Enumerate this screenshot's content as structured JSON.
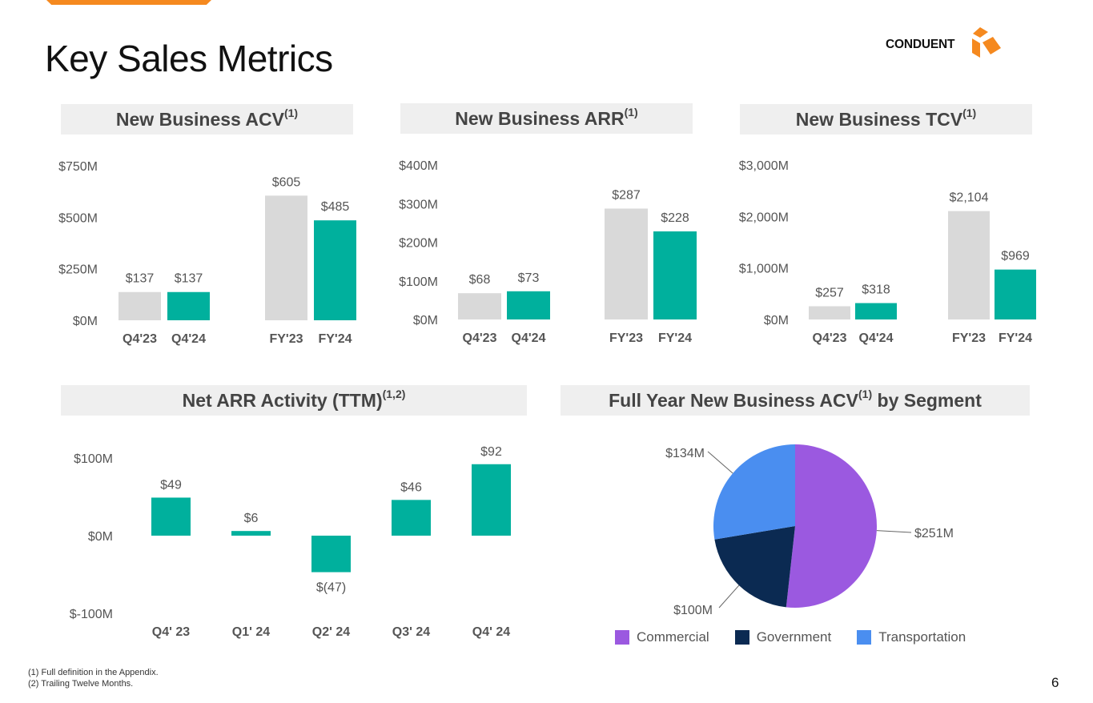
{
  "page": {
    "title": "Key Sales Metrics",
    "page_number": "6",
    "logo_text": "CONDUENT",
    "footnotes": [
      "(1) Full definition in the Appendix.",
      "(2) Trailing Twelve Months."
    ]
  },
  "colors": {
    "prior": "#d9d9d9",
    "current": "#00b09d",
    "accent": "#f5891f",
    "commercial": "#9b59e0",
    "government": "#0b2a52",
    "transportation": "#4a8ef0"
  },
  "headers": {
    "acv": {
      "text": "New Business ACV",
      "sup": "(1)"
    },
    "arr": {
      "text": "New Business ARR",
      "sup": "(1)"
    },
    "tcv": {
      "text": "New Business TCV",
      "sup": "(1)"
    },
    "net": {
      "text": "Net ARR Activity (TTM)",
      "sup": "(1,2)"
    },
    "seg": {
      "text": "Full Year New Business ACV",
      "sup": "(1)",
      "suffix": " by Segment"
    }
  },
  "chart_data": [
    {
      "id": "acv",
      "type": "bar",
      "title": "New Business ACV",
      "categories": [
        "Q4'23",
        "Q4'24",
        "FY'23",
        "FY'24"
      ],
      "values": [
        137,
        137,
        605,
        485
      ],
      "labels": [
        "$137",
        "$137",
        "$605",
        "$485"
      ],
      "yticks": [
        0,
        250,
        500,
        750
      ],
      "ytick_labels": [
        "$0M",
        "$250M",
        "$500M",
        "$750M"
      ],
      "ylim": [
        0,
        750
      ]
    },
    {
      "id": "arr",
      "type": "bar",
      "title": "New Business ARR",
      "categories": [
        "Q4'23",
        "Q4'24",
        "FY'23",
        "FY'24"
      ],
      "values": [
        68,
        73,
        287,
        228
      ],
      "labels": [
        "$68",
        "$73",
        "$287",
        "$228"
      ],
      "yticks": [
        0,
        100,
        200,
        300,
        400
      ],
      "ytick_labels": [
        "$0M",
        "$100M",
        "$200M",
        "$300M",
        "$400M"
      ],
      "ylim": [
        0,
        400
      ]
    },
    {
      "id": "tcv",
      "type": "bar",
      "title": "New Business TCV",
      "categories": [
        "Q4'23",
        "Q4'24",
        "FY'23",
        "FY'24"
      ],
      "values": [
        257,
        318,
        2104,
        969
      ],
      "labels": [
        "$257",
        "$318",
        "$2,104",
        "$969"
      ],
      "yticks": [
        0,
        1000,
        2000,
        3000
      ],
      "ytick_labels": [
        "$0M",
        "$1,000M",
        "$2,000M",
        "$3,000M"
      ],
      "ylim": [
        0,
        3000
      ]
    },
    {
      "id": "net",
      "type": "bar",
      "title": "Net ARR Activity (TTM)",
      "categories": [
        "Q4' 23",
        "Q1' 24",
        "Q2' 24",
        "Q3' 24",
        "Q4' 24"
      ],
      "values": [
        49,
        6,
        -47,
        46,
        92
      ],
      "labels": [
        "$49",
        "$6",
        "$(47)",
        "$46",
        "$92"
      ],
      "yticks": [
        -100,
        0,
        100
      ],
      "ytick_labels": [
        "$-100M",
        "$0M",
        "$100M"
      ],
      "ylim": [
        -100,
        100
      ]
    },
    {
      "id": "seg",
      "type": "pie",
      "title": "Full Year New Business ACV by Segment",
      "labels": [
        "Commercial",
        "Government",
        "Transportation"
      ],
      "values": [
        251,
        100,
        134
      ],
      "value_labels": [
        "$251M",
        "$100M",
        "$134M"
      ],
      "legend": "bottom"
    }
  ]
}
